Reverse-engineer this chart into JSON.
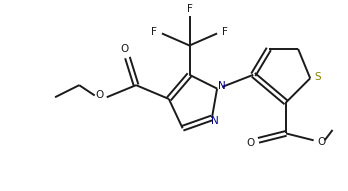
{
  "background_color": "#ffffff",
  "line_color": "#1a1a1a",
  "line_width": 1.4,
  "S_color": "#8B8000",
  "N_color": "#00008B",
  "text_color": "#1a1a1a",
  "figsize": [
    3.48,
    1.91
  ],
  "dpi": 100,
  "xlim": [
    0,
    10
  ],
  "ylim": [
    0,
    5.5
  ]
}
